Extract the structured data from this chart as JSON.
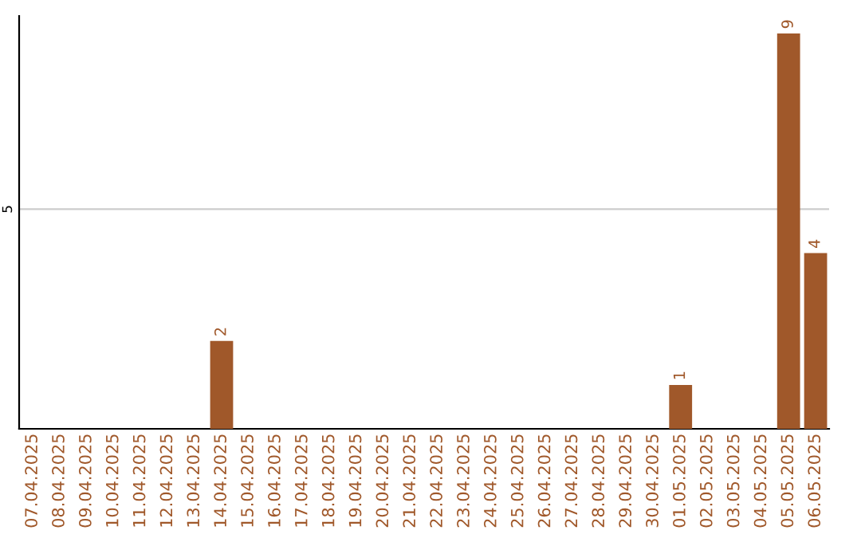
{
  "chart_data": {
    "type": "bar",
    "categories": [
      "07.04.2025",
      "08.04.2025",
      "09.04.2025",
      "10.04.2025",
      "11.04.2025",
      "12.04.2025",
      "13.04.2025",
      "14.04.2025",
      "15.04.2025",
      "16.04.2025",
      "17.04.2025",
      "18.04.2025",
      "19.04.2025",
      "20.04.2025",
      "21.04.2025",
      "22.04.2025",
      "23.04.2025",
      "24.04.2025",
      "25.04.2025",
      "26.04.2025",
      "27.04.2025",
      "28.04.2025",
      "29.04.2025",
      "30.04.2025",
      "01.05.2025",
      "02.05.2025",
      "03.05.2025",
      "04.05.2025",
      "05.05.2025",
      "06.05.2025"
    ],
    "values": [
      0,
      0,
      0,
      0,
      0,
      0,
      0,
      2,
      0,
      0,
      0,
      0,
      0,
      0,
      0,
      0,
      0,
      0,
      0,
      0,
      0,
      0,
      0,
      0,
      1,
      0,
      0,
      0,
      9,
      4
    ],
    "value_labels": [
      null,
      null,
      null,
      null,
      null,
      null,
      null,
      "2",
      null,
      null,
      null,
      null,
      null,
      null,
      null,
      null,
      null,
      null,
      null,
      null,
      null,
      null,
      null,
      null,
      "1",
      null,
      null,
      null,
      "9",
      "4"
    ],
    "color": "#a0582a",
    "ylim": [
      0,
      9.4
    ],
    "yticks": [
      5
    ],
    "grid": "y"
  }
}
